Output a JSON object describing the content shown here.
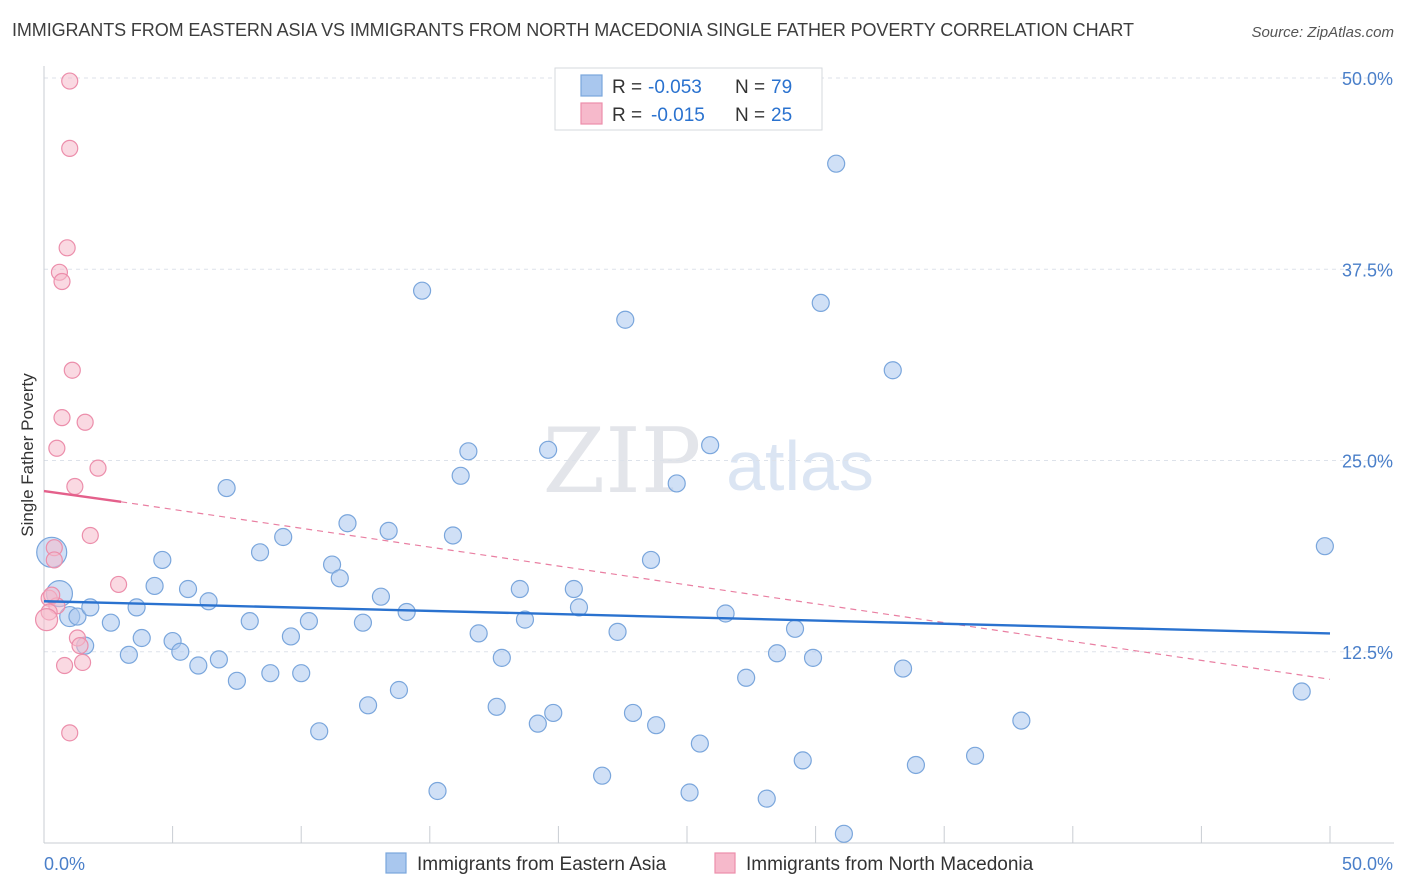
{
  "title": "IMMIGRANTS FROM EASTERN ASIA VS IMMIGRANTS FROM NORTH MACEDONIA SINGLE FATHER POVERTY CORRELATION CHART",
  "source": "Source: ZipAtlas.com",
  "watermark": {
    "zip": "ZIP",
    "atlas": "atlas"
  },
  "colors": {
    "blue_fill": "#a9c7ee",
    "blue_stroke": "#7aa6dc",
    "blue_line": "#2a72cf",
    "pink_fill": "#f6b9cb",
    "pink_stroke": "#ec8eab",
    "pink_line": "#e4608b",
    "axis_text": "#4a7fc9",
    "grid": "#dde2ea"
  },
  "legend_top": [
    {
      "r_label": "R = ",
      "r_value": "-0.053",
      "n_label": "N = ",
      "n_value": "79",
      "color": "blue"
    },
    {
      "r_label": "R = ",
      "r_value": "-0.015",
      "n_label": "N = ",
      "n_value": "25",
      "color": "pink"
    }
  ],
  "legend_bottom": [
    {
      "label": "Immigrants from Eastern Asia",
      "color": "blue"
    },
    {
      "label": "Immigrants from North Macedonia",
      "color": "pink"
    }
  ],
  "chart_data": {
    "type": "scatter",
    "title": "IMMIGRANTS FROM EASTERN ASIA VS IMMIGRANTS FROM NORTH MACEDONIA SINGLE FATHER POVERTY CORRELATION CHART",
    "xlabel": "",
    "ylabel": "Single Father Poverty",
    "xlim": [
      0,
      50
    ],
    "ylim": [
      0,
      50
    ],
    "x_tick_labels": [
      "0.0%",
      "50.0%"
    ],
    "y_ticks": [
      12.5,
      25.0,
      37.5,
      50.0
    ],
    "y_tick_labels": [
      "12.5%",
      "25.0%",
      "37.5%",
      "50.0%"
    ],
    "grid": true,
    "legend_position": "top-center",
    "series": [
      {
        "name": "Immigrants from Eastern Asia",
        "color": "blue",
        "trend": {
          "x": [
            0,
            50
          ],
          "y": [
            15.8,
            13.7
          ]
        },
        "points": [
          [
            0.3,
            19.0
          ],
          [
            0.6,
            16.3
          ],
          [
            1.0,
            14.8
          ],
          [
            1.3,
            14.8
          ],
          [
            1.8,
            15.4
          ],
          [
            1.6,
            12.9
          ],
          [
            2.6,
            14.4
          ],
          [
            3.3,
            12.3
          ],
          [
            3.6,
            15.4
          ],
          [
            3.8,
            13.4
          ],
          [
            4.3,
            16.8
          ],
          [
            4.6,
            18.5
          ],
          [
            5.0,
            13.2
          ],
          [
            5.3,
            12.5
          ],
          [
            5.6,
            16.6
          ],
          [
            6.0,
            11.6
          ],
          [
            6.4,
            15.8
          ],
          [
            6.8,
            12.0
          ],
          [
            7.1,
            23.2
          ],
          [
            7.5,
            10.6
          ],
          [
            8.0,
            14.5
          ],
          [
            8.4,
            19.0
          ],
          [
            8.8,
            11.1
          ],
          [
            9.3,
            20.0
          ],
          [
            9.6,
            13.5
          ],
          [
            10.0,
            11.1
          ],
          [
            10.3,
            14.5
          ],
          [
            10.7,
            7.3
          ],
          [
            11.2,
            18.2
          ],
          [
            11.5,
            17.3
          ],
          [
            11.8,
            20.9
          ],
          [
            12.4,
            14.4
          ],
          [
            12.6,
            9.0
          ],
          [
            13.1,
            16.1
          ],
          [
            13.4,
            20.4
          ],
          [
            13.8,
            10.0
          ],
          [
            14.1,
            15.1
          ],
          [
            14.7,
            36.1
          ],
          [
            15.3,
            3.4
          ],
          [
            15.9,
            20.1
          ],
          [
            16.2,
            24.0
          ],
          [
            16.5,
            25.6
          ],
          [
            16.9,
            13.7
          ],
          [
            17.6,
            8.9
          ],
          [
            17.8,
            12.1
          ],
          [
            18.5,
            16.6
          ],
          [
            18.7,
            14.6
          ],
          [
            19.2,
            7.8
          ],
          [
            19.6,
            25.7
          ],
          [
            19.8,
            8.5
          ],
          [
            20.6,
            16.6
          ],
          [
            20.8,
            15.4
          ],
          [
            21.7,
            4.4
          ],
          [
            22.3,
            13.8
          ],
          [
            22.6,
            34.2
          ],
          [
            22.9,
            8.5
          ],
          [
            23.6,
            18.5
          ],
          [
            23.8,
            7.7
          ],
          [
            24.6,
            23.5
          ],
          [
            25.1,
            3.3
          ],
          [
            25.5,
            6.5
          ],
          [
            25.9,
            26.0
          ],
          [
            26.5,
            15.0
          ],
          [
            27.3,
            10.8
          ],
          [
            28.1,
            2.9
          ],
          [
            28.5,
            12.4
          ],
          [
            29.2,
            14.0
          ],
          [
            29.5,
            5.4
          ],
          [
            29.9,
            12.1
          ],
          [
            30.2,
            35.3
          ],
          [
            30.8,
            44.4
          ],
          [
            31.1,
            0.6
          ],
          [
            33.0,
            30.9
          ],
          [
            33.4,
            11.4
          ],
          [
            33.9,
            5.1
          ],
          [
            36.2,
            5.7
          ],
          [
            38.0,
            8.0
          ],
          [
            48.9,
            9.9
          ],
          [
            49.8,
            19.4
          ]
        ]
      },
      {
        "name": "Immigrants from North Macedonia",
        "color": "pink",
        "trend": {
          "x": [
            0,
            3.0
          ],
          "y": [
            23.0,
            22.3
          ]
        },
        "trend_extension": {
          "x": [
            3.0,
            50
          ],
          "y": [
            22.3,
            10.7
          ]
        },
        "points": [
          [
            1.0,
            49.8
          ],
          [
            1.0,
            45.4
          ],
          [
            0.9,
            38.9
          ],
          [
            0.6,
            37.3
          ],
          [
            0.7,
            36.7
          ],
          [
            1.1,
            30.9
          ],
          [
            0.7,
            27.8
          ],
          [
            1.6,
            27.5
          ],
          [
            0.5,
            25.8
          ],
          [
            2.1,
            24.5
          ],
          [
            1.2,
            23.3
          ],
          [
            1.8,
            20.1
          ],
          [
            0.4,
            19.3
          ],
          [
            0.4,
            18.5
          ],
          [
            2.9,
            16.9
          ],
          [
            0.2,
            16.0
          ],
          [
            0.5,
            15.5
          ],
          [
            0.2,
            15.1
          ],
          [
            0.1,
            14.6
          ],
          [
            1.3,
            13.4
          ],
          [
            1.4,
            12.9
          ],
          [
            1.5,
            11.8
          ],
          [
            0.8,
            11.6
          ],
          [
            1.0,
            7.2
          ],
          [
            0.3,
            16.2
          ]
        ]
      }
    ]
  }
}
